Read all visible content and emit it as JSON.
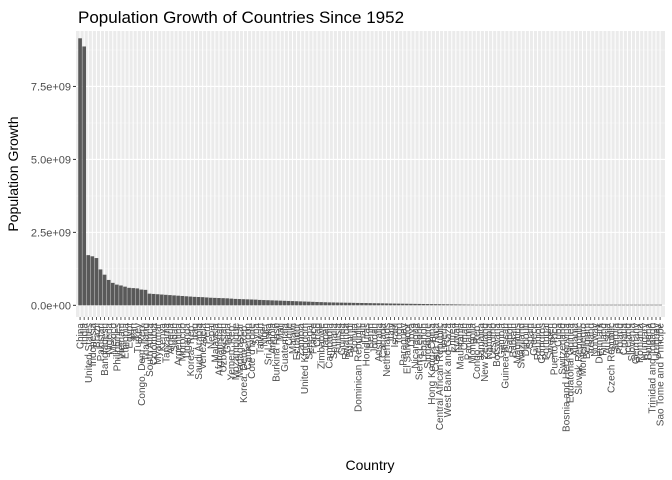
{
  "colors": {
    "panel": "#ebebeb",
    "grid_major": "#ffffff",
    "grid_minor": "#f5f5f5",
    "bar": "#595959",
    "tick": "#333333",
    "tick_text": "#4d4d4d"
  },
  "chart_data": {
    "type": "bar",
    "title": "Population Growth of Countries Since 1952",
    "xlabel": "Country",
    "ylabel": "Population Growth",
    "ylim": [
      -400000000,
      9400000000
    ],
    "yticks": [
      0,
      2500000000,
      5000000000,
      7500000000
    ],
    "ytick_labels": [
      "0.0e+00",
      "2.5e+09",
      "5.0e+09",
      "7.5e+09"
    ],
    "grid": true,
    "x_label_angle": 90,
    "categories": [
      "China",
      "India",
      "United States",
      "Indonesia",
      "Brazil",
      "Pakistan",
      "Bangladesh",
      "Nigeria",
      "Mexico",
      "Philippines",
      "Vietnam",
      "Ethiopia",
      "Egypt",
      "Iran",
      "Turkey",
      "Congo, Dem. Rep.",
      "Thailand",
      "South Africa",
      "Colombia",
      "Myanmar",
      "Kenya",
      "Tanzania",
      "Algeria",
      "Sudan",
      "Argentina",
      "Morocco",
      "Uganda",
      "Korea, Rep.",
      "Iraq",
      "Saudi Arabia",
      "Venezuela",
      "Peru",
      "Nepal",
      "Malaysia",
      "Afghanistan",
      "Uzbekistan",
      "Ghana",
      "Yemen, Rep.",
      "Mozambique",
      "Madagascar",
      "Korea, Dem. Rep.",
      "Cameroon",
      "Cote d'Ivoire",
      "Syria",
      "Taiwan",
      "Niger",
      "Sri Lanka",
      "Angola",
      "Burkina Faso",
      "Mali",
      "Guatemala",
      "Chile",
      "Malawi",
      "Ecuador",
      "Zambia",
      "United Kingdom",
      "Senegal",
      "France",
      "Chad",
      "Zimbabwe",
      "Japan",
      "Cambodia",
      "Somalia",
      "Tunisia",
      "Guinea",
      "Rwanda",
      "Burundi",
      "Bolivia",
      "Dominican Republic",
      "Haiti",
      "Honduras",
      "Benin",
      "Jordan",
      "Australia",
      "Canada",
      "Netherlands",
      "Italy",
      "Israel",
      "Togo",
      "Paraguay",
      "El Salvador",
      "Libya",
      "Nicaragua",
      "Sierra Leone",
      "Lebanon",
      "Singapore",
      "Hong Kong, China",
      "Costa Rica",
      "Central African Republic",
      "Liberia",
      "West Bank and Gaza",
      "Eritrea",
      "Kuwait",
      "Mauritania",
      "Oman",
      "Panama",
      "Mongolia",
      "Congo, Rep.",
      "Jamaica",
      "New Zealand",
      "Namibia",
      "Lesotho",
      "Botswana",
      "Gambia",
      "Guinea-Bissau",
      "Gabon",
      "Bahrain",
      "Mauritius",
      "Swaziland",
      "Djibouti",
      "Spain",
      "Greece",
      "Reunion",
      "Comoros",
      "Portugal",
      "Sweden",
      "Puerto Rico",
      "Cuba",
      "Switzerland",
      "Bosnia and Herzegovina",
      "Equatorial Guinea",
      "Albania",
      "Slovak Republic",
      "Montenegro",
      "Belgium",
      "Ireland",
      "Norway",
      "Denmark",
      "Finland",
      "Austria",
      "Czech Republic",
      "Serbia",
      "Poland",
      "Croatia",
      "Iceland",
      "Slovenia",
      "Germany",
      "Romania",
      "Hungary",
      "Bulgaria",
      "Trinidad and Tobago",
      "Uruguay",
      "Sao Tome and Principe"
    ],
    "values": [
      9150000000,
      8870000000,
      1720000000,
      1680000000,
      1620000000,
      1230000000,
      1050000000,
      870000000,
      770000000,
      710000000,
      680000000,
      640000000,
      600000000,
      590000000,
      580000000,
      540000000,
      530000000,
      400000000,
      390000000,
      380000000,
      370000000,
      360000000,
      350000000,
      340000000,
      330000000,
      320000000,
      310000000,
      300000000,
      290000000,
      285000000,
      280000000,
      270000000,
      260000000,
      255000000,
      250000000,
      245000000,
      240000000,
      230000000,
      220000000,
      215000000,
      210000000,
      205000000,
      200000000,
      195000000,
      185000000,
      180000000,
      175000000,
      170000000,
      165000000,
      160000000,
      155000000,
      150000000,
      145000000,
      140000000,
      135000000,
      130000000,
      125000000,
      120000000,
      115000000,
      110000000,
      105000000,
      100000000,
      98000000,
      95000000,
      92000000,
      90000000,
      88000000,
      85000000,
      82000000,
      80000000,
      78000000,
      75000000,
      72000000,
      70000000,
      68000000,
      65000000,
      62000000,
      60000000,
      58000000,
      56000000,
      54000000,
      52000000,
      50000000,
      48000000,
      46000000,
      44000000,
      42000000,
      40000000,
      38000000,
      36000000,
      34000000,
      32000000,
      30000000,
      28000000,
      26000000,
      24000000,
      22000000,
      20000000,
      18000000,
      16000000,
      15000000,
      14000000,
      13000000,
      12000000,
      11000000,
      10000000,
      9000000,
      8000000,
      7000000,
      6000000,
      5500000,
      5000000,
      4500000,
      4000000,
      3500000,
      3000000,
      2500000,
      2000000,
      1800000,
      1600000,
      1400000,
      1200000,
      1000000,
      900000,
      800000,
      700000,
      600000,
      500000,
      450000,
      400000,
      350000,
      300000,
      250000,
      200000,
      150000,
      120000,
      100000,
      80000,
      60000,
      40000,
      30000,
      20000,
      10000
    ]
  }
}
